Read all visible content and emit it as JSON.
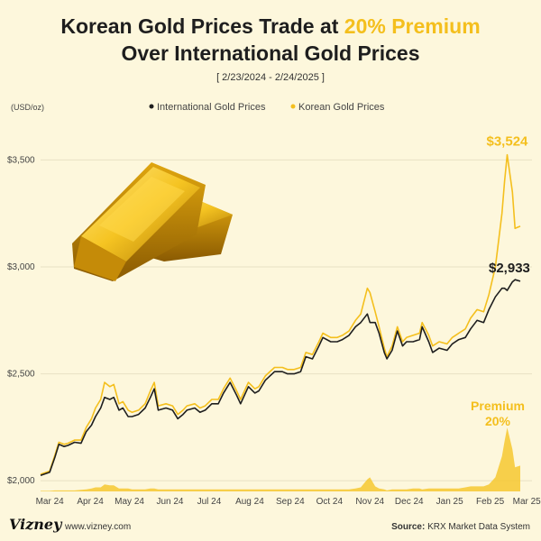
{
  "header": {
    "title_part1": "Korean Gold Prices Trade at ",
    "title_highlight": "20% Premium",
    "title_line2": "Over International Gold Prices",
    "subtitle": "[ 2/23/2024 - 2/24/2025 ]"
  },
  "footer": {
    "logo": "Vizney",
    "url": "www.vizney.com",
    "source_label": "Source:",
    "source_text": "KRX Market Data System"
  },
  "colors": {
    "background": "#fdf7dc",
    "international": "#1e1e1e",
    "korean": "#f4bf1d",
    "premium_fill": "#f6c830",
    "grid": "#e8e1c4",
    "axis_text": "#444444"
  },
  "chart_data": {
    "type": "line",
    "y_unit": "(USD/oz)",
    "ylim": [
      1950,
      3700
    ],
    "yticks": [
      2000,
      2500,
      3000,
      3500
    ],
    "ytick_labels": [
      "$2,000",
      "$2,500",
      "$3,000",
      "$3,500"
    ],
    "x_tick_labels": [
      "Mar 24",
      "Apr 24",
      "May 24",
      "Jun 24",
      "Jul 24",
      "Aug 24",
      "Sep 24",
      "Oct 24",
      "Nov 24",
      "Dec 24",
      "Jan 25",
      "Feb 25",
      "Mar 25"
    ],
    "x_tick_dates": [
      "2024-03-01",
      "2024-04-01",
      "2024-05-01",
      "2024-06-01",
      "2024-07-01",
      "2024-08-01",
      "2024-09-01",
      "2024-10-01",
      "2024-11-01",
      "2024-12-01",
      "2025-01-01",
      "2025-02-01",
      "2025-03-01"
    ],
    "x_range": [
      "2024-02-23",
      "2025-03-05"
    ],
    "grid": true,
    "legend_position": "top",
    "series": [
      {
        "name": "International Gold Prices",
        "color": "#1e1e1e",
        "points": [
          [
            "2024-02-23",
            2025
          ],
          [
            "2024-03-01",
            2040
          ],
          [
            "2024-03-05",
            2110
          ],
          [
            "2024-03-08",
            2170
          ],
          [
            "2024-03-12",
            2160
          ],
          [
            "2024-03-15",
            2165
          ],
          [
            "2024-03-20",
            2180
          ],
          [
            "2024-03-25",
            2175
          ],
          [
            "2024-03-29",
            2230
          ],
          [
            "2024-04-02",
            2260
          ],
          [
            "2024-04-05",
            2300
          ],
          [
            "2024-04-09",
            2340
          ],
          [
            "2024-04-12",
            2390
          ],
          [
            "2024-04-16",
            2380
          ],
          [
            "2024-04-19",
            2390
          ],
          [
            "2024-04-23",
            2330
          ],
          [
            "2024-04-26",
            2340
          ],
          [
            "2024-04-30",
            2300
          ],
          [
            "2024-05-03",
            2300
          ],
          [
            "2024-05-08",
            2310
          ],
          [
            "2024-05-13",
            2340
          ],
          [
            "2024-05-17",
            2390
          ],
          [
            "2024-05-20",
            2430
          ],
          [
            "2024-05-23",
            2330
          ],
          [
            "2024-05-29",
            2340
          ],
          [
            "2024-06-03",
            2330
          ],
          [
            "2024-06-07",
            2290
          ],
          [
            "2024-06-11",
            2310
          ],
          [
            "2024-06-14",
            2330
          ],
          [
            "2024-06-20",
            2340
          ],
          [
            "2024-06-24",
            2320
          ],
          [
            "2024-06-28",
            2330
          ],
          [
            "2024-07-03",
            2360
          ],
          [
            "2024-07-08",
            2360
          ],
          [
            "2024-07-12",
            2410
          ],
          [
            "2024-07-17",
            2460
          ],
          [
            "2024-07-22",
            2400
          ],
          [
            "2024-07-25",
            2360
          ],
          [
            "2024-07-31",
            2440
          ],
          [
            "2024-08-05",
            2410
          ],
          [
            "2024-08-08",
            2420
          ],
          [
            "2024-08-13",
            2470
          ],
          [
            "2024-08-20",
            2510
          ],
          [
            "2024-08-26",
            2510
          ],
          [
            "2024-08-30",
            2500
          ],
          [
            "2024-09-04",
            2500
          ],
          [
            "2024-09-09",
            2510
          ],
          [
            "2024-09-13",
            2580
          ],
          [
            "2024-09-18",
            2570
          ],
          [
            "2024-09-23",
            2630
          ],
          [
            "2024-09-26",
            2670
          ],
          [
            "2024-10-02",
            2650
          ],
          [
            "2024-10-07",
            2650
          ],
          [
            "2024-10-11",
            2660
          ],
          [
            "2024-10-16",
            2680
          ],
          [
            "2024-10-21",
            2720
          ],
          [
            "2024-10-25",
            2740
          ],
          [
            "2024-10-30",
            2780
          ],
          [
            "2024-11-01",
            2740
          ],
          [
            "2024-11-05",
            2740
          ],
          [
            "2024-11-08",
            2690
          ],
          [
            "2024-11-12",
            2600
          ],
          [
            "2024-11-14",
            2570
          ],
          [
            "2024-11-18",
            2610
          ],
          [
            "2024-11-22",
            2700
          ],
          [
            "2024-11-26",
            2630
          ],
          [
            "2024-11-29",
            2650
          ],
          [
            "2024-12-04",
            2650
          ],
          [
            "2024-12-09",
            2660
          ],
          [
            "2024-12-11",
            2720
          ],
          [
            "2024-12-16",
            2650
          ],
          [
            "2024-12-19",
            2600
          ],
          [
            "2024-12-24",
            2620
          ],
          [
            "2024-12-30",
            2610
          ],
          [
            "2025-01-03",
            2640
          ],
          [
            "2025-01-08",
            2660
          ],
          [
            "2025-01-13",
            2670
          ],
          [
            "2025-01-17",
            2710
          ],
          [
            "2025-01-22",
            2750
          ],
          [
            "2025-01-27",
            2740
          ],
          [
            "2025-01-31",
            2800
          ],
          [
            "2025-02-05",
            2860
          ],
          [
            "2025-02-10",
            2900
          ],
          [
            "2025-02-12",
            2900
          ],
          [
            "2025-02-14",
            2890
          ],
          [
            "2025-02-18",
            2930
          ],
          [
            "2025-02-20",
            2940
          ],
          [
            "2025-02-24",
            2933
          ]
        ],
        "end_label": "$2,933"
      },
      {
        "name": "Korean Gold Prices",
        "color": "#f4bf1d",
        "points": [
          [
            "2024-02-23",
            2030
          ],
          [
            "2024-03-01",
            2045
          ],
          [
            "2024-03-05",
            2120
          ],
          [
            "2024-03-08",
            2180
          ],
          [
            "2024-03-12",
            2170
          ],
          [
            "2024-03-15",
            2175
          ],
          [
            "2024-03-20",
            2190
          ],
          [
            "2024-03-25",
            2190
          ],
          [
            "2024-03-29",
            2250
          ],
          [
            "2024-04-02",
            2290
          ],
          [
            "2024-04-05",
            2340
          ],
          [
            "2024-04-09",
            2380
          ],
          [
            "2024-04-12",
            2460
          ],
          [
            "2024-04-16",
            2440
          ],
          [
            "2024-04-19",
            2450
          ],
          [
            "2024-04-23",
            2360
          ],
          [
            "2024-04-26",
            2370
          ],
          [
            "2024-04-30",
            2330
          ],
          [
            "2024-05-03",
            2320
          ],
          [
            "2024-05-08",
            2330
          ],
          [
            "2024-05-13",
            2360
          ],
          [
            "2024-05-17",
            2420
          ],
          [
            "2024-05-20",
            2460
          ],
          [
            "2024-05-23",
            2350
          ],
          [
            "2024-05-29",
            2360
          ],
          [
            "2024-06-03",
            2350
          ],
          [
            "2024-06-07",
            2310
          ],
          [
            "2024-06-11",
            2330
          ],
          [
            "2024-06-14",
            2350
          ],
          [
            "2024-06-20",
            2360
          ],
          [
            "2024-06-24",
            2340
          ],
          [
            "2024-06-28",
            2350
          ],
          [
            "2024-07-03",
            2380
          ],
          [
            "2024-07-08",
            2380
          ],
          [
            "2024-07-12",
            2430
          ],
          [
            "2024-07-17",
            2480
          ],
          [
            "2024-07-22",
            2420
          ],
          [
            "2024-07-25",
            2380
          ],
          [
            "2024-07-31",
            2460
          ],
          [
            "2024-08-05",
            2430
          ],
          [
            "2024-08-08",
            2440
          ],
          [
            "2024-08-13",
            2490
          ],
          [
            "2024-08-20",
            2530
          ],
          [
            "2024-08-26",
            2530
          ],
          [
            "2024-08-30",
            2520
          ],
          [
            "2024-09-04",
            2520
          ],
          [
            "2024-09-09",
            2530
          ],
          [
            "2024-09-13",
            2600
          ],
          [
            "2024-09-18",
            2590
          ],
          [
            "2024-09-23",
            2650
          ],
          [
            "2024-09-26",
            2690
          ],
          [
            "2024-10-02",
            2670
          ],
          [
            "2024-10-07",
            2670
          ],
          [
            "2024-10-11",
            2680
          ],
          [
            "2024-10-16",
            2700
          ],
          [
            "2024-10-21",
            2750
          ],
          [
            "2024-10-25",
            2780
          ],
          [
            "2024-10-30",
            2900
          ],
          [
            "2024-11-01",
            2880
          ],
          [
            "2024-11-05",
            2790
          ],
          [
            "2024-11-08",
            2720
          ],
          [
            "2024-11-12",
            2620
          ],
          [
            "2024-11-14",
            2580
          ],
          [
            "2024-11-18",
            2630
          ],
          [
            "2024-11-22",
            2720
          ],
          [
            "2024-11-26",
            2650
          ],
          [
            "2024-11-29",
            2670
          ],
          [
            "2024-12-04",
            2680
          ],
          [
            "2024-12-09",
            2690
          ],
          [
            "2024-12-11",
            2740
          ],
          [
            "2024-12-16",
            2680
          ],
          [
            "2024-12-19",
            2630
          ],
          [
            "2024-12-24",
            2650
          ],
          [
            "2024-12-30",
            2640
          ],
          [
            "2025-01-03",
            2670
          ],
          [
            "2025-01-08",
            2690
          ],
          [
            "2025-01-13",
            2710
          ],
          [
            "2025-01-17",
            2760
          ],
          [
            "2025-01-22",
            2800
          ],
          [
            "2025-01-27",
            2790
          ],
          [
            "2025-01-31",
            2870
          ],
          [
            "2025-02-05",
            3000
          ],
          [
            "2025-02-10",
            3250
          ],
          [
            "2025-02-12",
            3400
          ],
          [
            "2025-02-14",
            3524
          ],
          [
            "2025-02-18",
            3350
          ],
          [
            "2025-02-20",
            3180
          ],
          [
            "2025-02-24",
            3190
          ]
        ],
        "end_label": "$3,524",
        "end_label_date": "2025-02-14"
      }
    ],
    "premium": {
      "label_line1": "Premium",
      "label_line2": "20%",
      "color": "#f6c830",
      "baseline": 1950,
      "note": "area height = Korean premium over international price"
    }
  },
  "legend": {
    "items": [
      {
        "label": "International Gold Prices",
        "color": "#1e1e1e"
      },
      {
        "label": "Korean Gold Prices",
        "color": "#f4bf1d"
      }
    ]
  }
}
